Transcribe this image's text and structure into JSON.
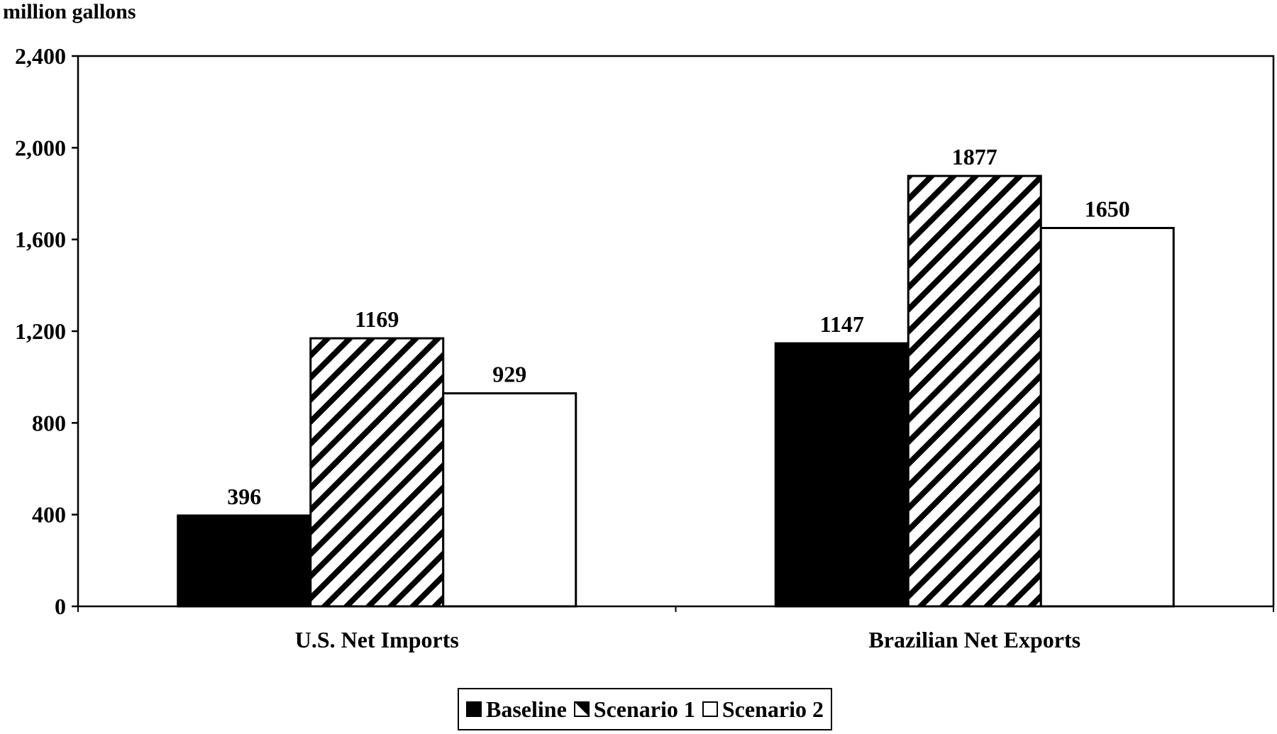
{
  "chart_data": {
    "type": "bar",
    "ylabel": "million gallons",
    "xlabel": "",
    "categories": [
      "U.S. Net Imports",
      "Brazilian Net Exports"
    ],
    "series": [
      {
        "name": "Baseline",
        "values": [
          396,
          1147
        ],
        "fill": "solid",
        "color": "#000000"
      },
      {
        "name": "Scenario 1",
        "values": [
          1169,
          1877
        ],
        "fill": "hatched",
        "color": "#000000"
      },
      {
        "name": "Scenario 2",
        "values": [
          929,
          1650
        ],
        "fill": "white",
        "color": "#ffffff"
      }
    ],
    "data_labels": [
      [
        "396",
        "1169",
        "929"
      ],
      [
        "1147",
        "1877",
        "1650"
      ]
    ],
    "ylim": [
      0,
      2400
    ],
    "yticks": [
      0,
      400,
      800,
      1200,
      1600,
      2000,
      2400
    ],
    "ytick_labels": [
      "0",
      "400",
      "800",
      "1,200",
      "1,600",
      "2,000",
      "2,400"
    ],
    "grid": false,
    "legend_position": "bottom"
  }
}
